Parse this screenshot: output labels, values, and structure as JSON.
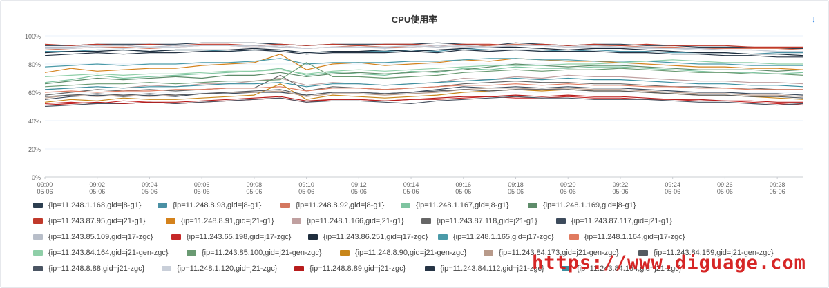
{
  "chart_data": {
    "type": "line",
    "title": "CPU使用率",
    "y_ticks": [
      "0%",
      "20%",
      "40%",
      "60%",
      "80%",
      "100%"
    ],
    "ylim": [
      0,
      100
    ],
    "x_ticks": [
      {
        "time": "09:00",
        "date": "05-06"
      },
      {
        "time": "09:02",
        "date": "05-06"
      },
      {
        "time": "09:04",
        "date": "05-06"
      },
      {
        "time": "09:06",
        "date": "05-06"
      },
      {
        "time": "09:08",
        "date": "05-06"
      },
      {
        "time": "09:10",
        "date": "05-06"
      },
      {
        "time": "09:12",
        "date": "05-06"
      },
      {
        "time": "09:14",
        "date": "05-06"
      },
      {
        "time": "09:16",
        "date": "05-06"
      },
      {
        "time": "09:18",
        "date": "05-06"
      },
      {
        "time": "09:20",
        "date": "05-06"
      },
      {
        "time": "09:22",
        "date": "05-06"
      },
      {
        "time": "09:24",
        "date": "05-06"
      },
      {
        "time": "09:26",
        "date": "05-06"
      },
      {
        "time": "09:28",
        "date": "05-06"
      }
    ],
    "x": [
      "09:00",
      "09:01",
      "09:02",
      "09:03",
      "09:04",
      "09:05",
      "09:06",
      "09:07",
      "09:08",
      "09:09",
      "09:10",
      "09:11",
      "09:12",
      "09:13",
      "09:14",
      "09:15",
      "09:16",
      "09:17",
      "09:18",
      "09:19",
      "09:20",
      "09:21",
      "09:22",
      "09:23",
      "09:24",
      "09:25",
      "09:26",
      "09:27",
      "09:28",
      "09:29"
    ],
    "grid": true,
    "legend_position": "bottom",
    "series": [
      {
        "name": "{ip=11.248.1.168,gid=j8-g1}",
        "color": "#2c3e50",
        "values": [
          93,
          93,
          94,
          94,
          94,
          94,
          95,
          95,
          95,
          94,
          93,
          94,
          94,
          94,
          94,
          95,
          94,
          93,
          95,
          94,
          93,
          94,
          94,
          93,
          93,
          92,
          92,
          92,
          91,
          91
        ]
      },
      {
        "name": "{ip=11.248.8.93,gid=j8-g1}",
        "color": "#4a90a4",
        "values": [
          89,
          89,
          90,
          90,
          89,
          90,
          90,
          89,
          90,
          90,
          88,
          89,
          89,
          89,
          90,
          89,
          91,
          90,
          90,
          90,
          89,
          90,
          89,
          89,
          88,
          88,
          88,
          87,
          88,
          88
        ]
      },
      {
        "name": "{ip=11.248.8.92,gid=j8-g1}",
        "color": "#d4775f",
        "values": [
          90,
          91,
          92,
          92,
          91,
          92,
          93,
          93,
          92,
          93,
          91,
          92,
          93,
          92,
          92,
          93,
          92,
          93,
          94,
          93,
          92,
          93,
          93,
          92,
          92,
          91,
          91,
          91,
          91,
          90
        ]
      },
      {
        "name": "{ip=11.248.1.167,gid=j8-g1}",
        "color": "#7ec4a0",
        "values": [
          67,
          69,
          72,
          70,
          71,
          72,
          73,
          74,
          75,
          77,
          72,
          74,
          73,
          72,
          75,
          74,
          77,
          76,
          78,
          77,
          77,
          78,
          78,
          77,
          76,
          75,
          74,
          74,
          73,
          74
        ]
      },
      {
        "name": "{ip=11.248.1.169,gid=j8-g1}",
        "color": "#5e8c6a",
        "values": [
          66,
          68,
          70,
          69,
          70,
          71,
          70,
          72,
          72,
          74,
          71,
          73,
          74,
          73,
          74,
          75,
          76,
          78,
          80,
          79,
          78,
          79,
          79,
          78,
          77,
          76,
          76,
          76,
          75,
          76
        ]
      },
      {
        "name": "{ip=11.243.87.95,gid=j21-g1}",
        "color": "#c0392b",
        "values": [
          94,
          93,
          94,
          93,
          94,
          93,
          94,
          94,
          93,
          94,
          93,
          94,
          93,
          94,
          94,
          93,
          94,
          94,
          93,
          94,
          93,
          94,
          93,
          94,
          93,
          93,
          93,
          92,
          92,
          92
        ]
      },
      {
        "name": "{ip=11.248.8.91,gid=j21-g1}",
        "color": "#d4821c",
        "values": [
          74,
          77,
          75,
          76,
          77,
          77,
          79,
          80,
          81,
          87,
          76,
          80,
          81,
          79,
          80,
          81,
          83,
          82,
          84,
          83,
          82,
          82,
          81,
          80,
          79,
          78,
          78,
          77,
          77,
          76
        ]
      },
      {
        "name": "{ip=11.248.1.166,gid=j21-g1}",
        "color": "#c0a0a0",
        "values": [
          62,
          63,
          64,
          63,
          65,
          64,
          66,
          66,
          68,
          70,
          65,
          67,
          66,
          65,
          66,
          67,
          70,
          69,
          71,
          70,
          72,
          71,
          71,
          70,
          69,
          68,
          68,
          67,
          67,
          66
        ]
      },
      {
        "name": "{ip=11.243.87.118,gid=j21-g1}",
        "color": "#666666",
        "values": [
          58,
          60,
          62,
          61,
          62,
          61,
          62,
          63,
          63,
          72,
          61,
          64,
          63,
          62,
          63,
          64,
          66,
          67,
          68,
          67,
          67,
          66,
          66,
          65,
          64,
          64,
          63,
          63,
          62,
          62
        ]
      },
      {
        "name": "{ip=11.243.87.117,gid=j21-g1}",
        "color": "#3d4b5c",
        "values": [
          55,
          57,
          58,
          57,
          58,
          57,
          59,
          59,
          60,
          60,
          58,
          60,
          60,
          59,
          60,
          62,
          64,
          63,
          64,
          63,
          64,
          63,
          63,
          62,
          61,
          60,
          60,
          59,
          59,
          58
        ]
      },
      {
        "name": "{ip=11.243.85.109,gid=j17-zgc}",
        "color": "#b8bec9",
        "values": [
          92,
          92,
          93,
          93,
          92,
          93,
          93,
          93,
          93,
          92,
          91,
          92,
          92,
          92,
          93,
          92,
          93,
          92,
          93,
          93,
          92,
          93,
          92,
          92,
          91,
          91,
          90,
          90,
          89,
          89
        ]
      },
      {
        "name": "{ip=11.243.65.198,gid=j17-zgc}",
        "color": "#c62828",
        "values": [
          52,
          53,
          52,
          54,
          53,
          52,
          53,
          54,
          55,
          56,
          53,
          55,
          55,
          54,
          55,
          55,
          56,
          57,
          56,
          56,
          57,
          56,
          56,
          55,
          55,
          54,
          54,
          53,
          52,
          51
        ]
      },
      {
        "name": "{ip=11.243.86.251,gid=j17-zgc}",
        "color": "#1f2d3d",
        "values": [
          88,
          89,
          89,
          90,
          89,
          90,
          90,
          90,
          91,
          90,
          88,
          89,
          89,
          90,
          89,
          90,
          91,
          92,
          92,
          91,
          90,
          91,
          91,
          90,
          89,
          88,
          88,
          87,
          87,
          86
        ]
      },
      {
        "name": "{ip=11.248.1.165,gid=j17-zgc}",
        "color": "#4a9aa8",
        "values": [
          78,
          79,
          80,
          79,
          80,
          80,
          81,
          81,
          82,
          84,
          80,
          81,
          81,
          81,
          82,
          82,
          83,
          84,
          84,
          83,
          83,
          82,
          82,
          82,
          81,
          80,
          80,
          79,
          79,
          79
        ]
      },
      {
        "name": "{ip=11.248.1.164,gid=j17-zgc}",
        "color": "#e07a5f",
        "values": [
          60,
          61,
          60,
          61,
          61,
          62,
          62,
          63,
          63,
          64,
          61,
          63,
          63,
          62,
          63,
          64,
          65,
          65,
          66,
          65,
          66,
          65,
          65,
          64,
          64,
          63,
          63,
          62,
          62,
          62
        ]
      },
      {
        "name": "{ip=11.243.84.164,gid=j21-gen-zgc}",
        "color": "#8fcfa8",
        "values": [
          71,
          72,
          73,
          72,
          73,
          73,
          74,
          75,
          75,
          76,
          73,
          75,
          76,
          75,
          76,
          77,
          78,
          79,
          79,
          79,
          80,
          80,
          81,
          82,
          83,
          82,
          81,
          81,
          80,
          80
        ]
      },
      {
        "name": "{ip=11.243.85.100,gid=j21-gen-zgc}",
        "color": "#6a9a72",
        "values": [
          64,
          65,
          66,
          66,
          67,
          66,
          67,
          68,
          68,
          69,
          81,
          71,
          71,
          70,
          71,
          72,
          74,
          75,
          76,
          75,
          76,
          76,
          77,
          76,
          75,
          74,
          74,
          73,
          73,
          72
        ]
      },
      {
        "name": "{ip=11.248.8.90,gid=j21-gen-zgc}",
        "color": "#c8861a",
        "values": [
          53,
          55,
          54,
          56,
          55,
          55,
          56,
          57,
          58,
          66,
          55,
          58,
          57,
          56,
          57,
          58,
          60,
          61,
          62,
          61,
          62,
          61,
          61,
          60,
          59,
          58,
          58,
          57,
          56,
          55
        ]
      },
      {
        "name": "{ip=11.243.84.173,gid=j21-gen-zgc}",
        "color": "#b89a8a",
        "values": [
          56,
          58,
          57,
          58,
          57,
          58,
          59,
          60,
          60,
          61,
          57,
          59,
          59,
          58,
          59,
          60,
          62,
          63,
          63,
          62,
          63,
          62,
          62,
          61,
          60,
          59,
          59,
          58,
          58,
          57
        ]
      },
      {
        "name": "{ip=11.243.84.159,gid=j21-gen-zgc}",
        "color": "#555a60",
        "values": [
          57,
          58,
          59,
          58,
          59,
          58,
          59,
          60,
          61,
          62,
          58,
          60,
          60,
          59,
          60,
          61,
          62,
          61,
          62,
          62,
          62,
          61,
          61,
          60,
          59,
          58,
          58,
          57,
          57,
          56
        ]
      },
      {
        "name": "{ip=11.248.8.88,gid=j21-zgc}",
        "color": "#4b5563",
        "values": [
          50,
          51,
          52,
          52,
          53,
          52,
          53,
          54,
          55,
          56,
          53,
          54,
          54,
          53,
          52,
          54,
          55,
          56,
          57,
          56,
          56,
          55,
          55,
          55,
          54,
          53,
          53,
          52,
          51,
          52
        ]
      },
      {
        "name": "{ip=11.248.1.120,gid=j21-zgc}",
        "color": "#c9cfd9",
        "values": [
          91,
          91,
          92,
          91,
          92,
          92,
          93,
          93,
          92,
          93,
          91,
          92,
          92,
          91,
          92,
          93,
          92,
          92,
          93,
          93,
          92,
          92,
          92,
          91,
          91,
          90,
          90,
          90,
          89,
          89
        ]
      },
      {
        "name": "{ip=11.248.8.89,gid=j21-zgc}",
        "color": "#b71c1c",
        "values": [
          51,
          52,
          53,
          52,
          53,
          53,
          54,
          55,
          56,
          57,
          54,
          55,
          55,
          54,
          55,
          56,
          57,
          57,
          58,
          57,
          58,
          57,
          57,
          56,
          55,
          55,
          54,
          54,
          53,
          53
        ]
      },
      {
        "name": "{ip=11.243.84.112,gid=j21-zgc}",
        "color": "#263445",
        "values": [
          86,
          87,
          88,
          87,
          88,
          88,
          89,
          89,
          90,
          89,
          87,
          88,
          88,
          88,
          89,
          88,
          90,
          89,
          90,
          89,
          89,
          89,
          88,
          88,
          87,
          87,
          86,
          86,
          85,
          85
        ]
      },
      {
        "name": "{ip=11.243.84.154,gid=j21-zgc}",
        "color": "#3a8fa0",
        "values": [
          62,
          63,
          64,
          63,
          64,
          64,
          65,
          66,
          66,
          67,
          64,
          66,
          66,
          65,
          66,
          67,
          68,
          69,
          70,
          69,
          70,
          69,
          69,
          68,
          67,
          66,
          66,
          65,
          65,
          64
        ]
      }
    ]
  },
  "download_icon": "download-icon",
  "watermark": "https://www.diguage.com"
}
